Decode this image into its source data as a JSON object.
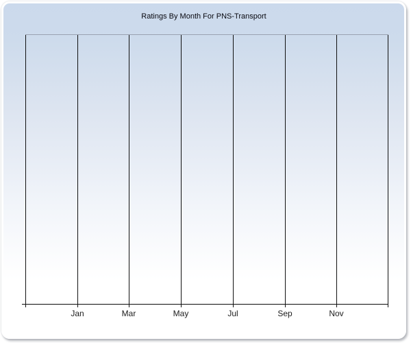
{
  "panel": {
    "title": "Ratings By Month For PNS-Transport"
  },
  "chart_data": {
    "type": "line",
    "title": "Ratings By Month For PNS-Transport",
    "x_tick_labels": [
      "Jan",
      "Mar",
      "May",
      "Jul",
      "Sep",
      "Nov"
    ],
    "series": [],
    "values": [],
    "layout": {
      "vertical_gridline_count": 8,
      "labeled_gridline_start_index": 1,
      "grid_on": true,
      "legend": "none",
      "y_axis_labels_visible": false
    },
    "colors": {
      "panel_gradient_top": "#cbd9ec",
      "panel_gradient_bottom": "#ffffff",
      "gridline": "#101010",
      "plot_top_border": "#99a1b0",
      "axis_line": "#0a0a0a",
      "title_text": "#08080f",
      "tick_label_text": "#1c1c1c",
      "panel_border": "#ffffff",
      "shadow": "#7d828a"
    }
  }
}
